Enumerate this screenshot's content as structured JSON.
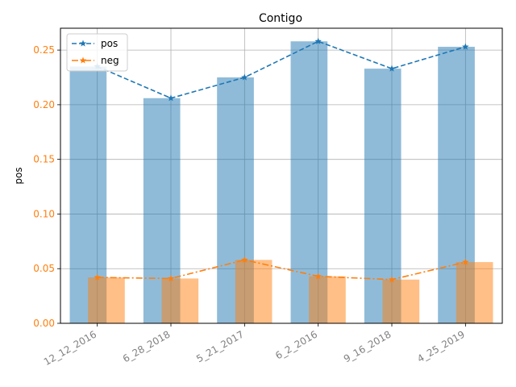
{
  "chart_data": {
    "type": "bar",
    "title": "Contigo",
    "xlabel": "",
    "ylabel": "pos",
    "categories": [
      "12_12_2016",
      "6_28_2018",
      "5_21_2017",
      "6_2_2016",
      "9_16_2018",
      "4_25_2019"
    ],
    "series": [
      {
        "name": "pos",
        "values": [
          0.235,
          0.206,
          0.225,
          0.258,
          0.233,
          0.253
        ],
        "color": "#1f77b4"
      },
      {
        "name": "neg",
        "values": [
          0.042,
          0.041,
          0.058,
          0.043,
          0.04,
          0.056
        ],
        "color": "#ff7f0e"
      }
    ],
    "yticks": [
      "0.00",
      "0.05",
      "0.10",
      "0.15",
      "0.20",
      "0.25"
    ],
    "ylim": [
      0,
      0.27
    ],
    "grid": true,
    "legend": "upper-left",
    "ytick_color": "#ff7f0e",
    "xtick_color": "#808080"
  }
}
